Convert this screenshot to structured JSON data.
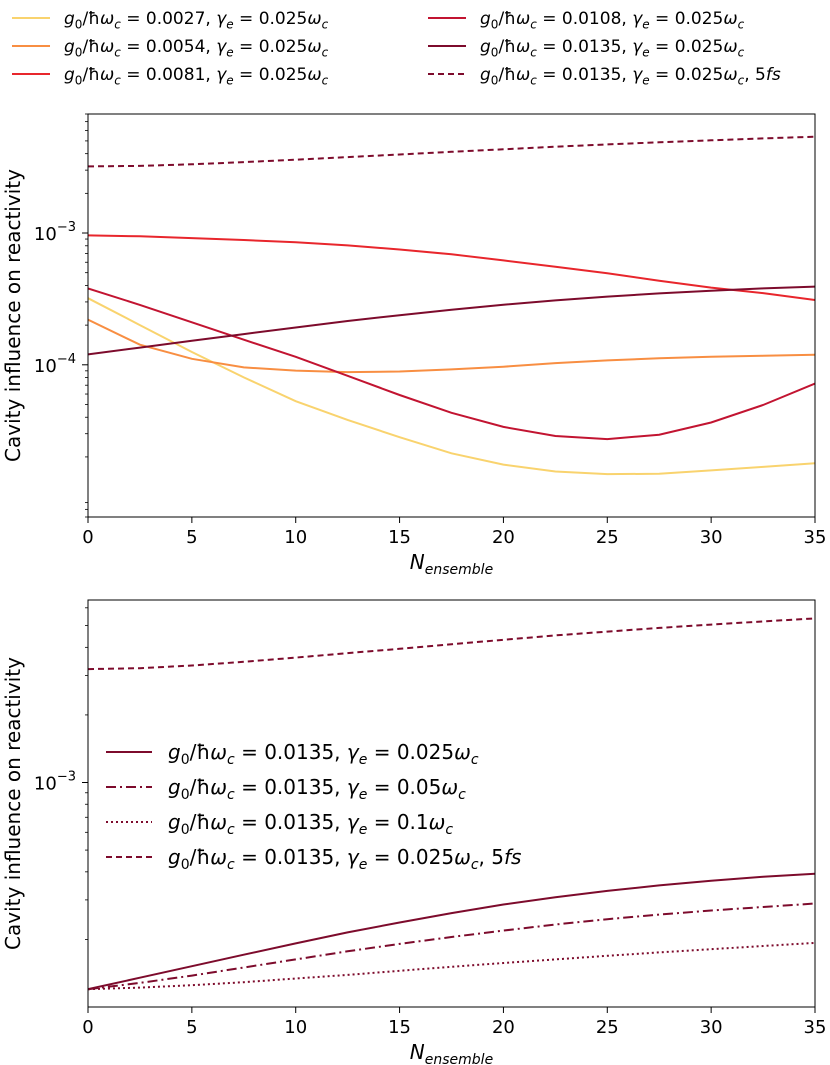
{
  "chart_data": [
    {
      "type": "line",
      "yscale": "log",
      "xlabel": "N",
      "xlabel_sub": "ensemble",
      "ylabel": "Cavity influence on reactivity",
      "xlim": [
        0,
        35
      ],
      "ylim": [
        7e-06,
        0.008
      ],
      "xticks": [
        0,
        5,
        10,
        15,
        20,
        25,
        30,
        35
      ],
      "yticks": [
        {
          "value": 0.001,
          "base": "10",
          "exp": "−3"
        },
        {
          "value": 0.0001,
          "base": "10",
          "exp": "−4"
        }
      ],
      "legend_position": "above plot, two columns",
      "x": [
        0,
        2.5,
        5,
        7.5,
        10,
        12.5,
        15,
        17.5,
        20,
        22.5,
        25,
        27.5,
        30,
        32.5,
        35
      ],
      "series": [
        {
          "name": "g0/ħωc = 0.0027, γe = 0.025ωc",
          "g0": "0.0027",
          "gamma": "0.025",
          "tail": "",
          "color": "#f9d36e",
          "dash": "",
          "values": [
            0.00032,
            0.0002,
            0.000125,
            8.02e-05,
            5.29e-05,
            3.82e-05,
            2.82e-05,
            2.13e-05,
            1.75e-05,
            1.55e-05,
            1.48e-05,
            1.49e-05,
            1.58e-05,
            1.68e-05,
            1.79e-05
          ]
        },
        {
          "name": "g0/ħωc = 0.0054, γe = 0.025ωc",
          "g0": "0.0054",
          "gamma": "0.025",
          "tail": "",
          "color": "#f88e42",
          "dash": "",
          "values": [
            0.00022,
            0.000142,
            0.000111,
            9.55e-05,
            9.03e-05,
            8.8e-05,
            8.9e-05,
            9.23e-05,
            9.68e-05,
            0.000103,
            0.000108,
            0.000112,
            0.000115,
            0.000117,
            0.000119
          ]
        },
        {
          "name": "g0/ħωc = 0.0081, γe = 0.025ωc",
          "g0": "0.0081",
          "gamma": "0.025",
          "tail": "",
          "color": "#e8262c",
          "dash": "",
          "values": [
            0.00096,
            0.000945,
            0.000915,
            0.000885,
            0.00085,
            0.000805,
            0.00075,
            0.00069,
            0.00062,
            0.000555,
            0.000495,
            0.000435,
            0.000385,
            0.00035,
            0.00031
          ]
        },
        {
          "name": "g0/ħωc = 0.0108, γe = 0.025ωc",
          "g0": "0.0108",
          "gamma": "0.025",
          "tail": "",
          "color": "#c21431",
          "dash": "",
          "values": [
            0.00038,
            0.000285,
            0.00021,
            0.000155,
            0.000115,
            8.25e-05,
            5.9e-05,
            4.32e-05,
            3.38e-05,
            2.88e-05,
            2.73e-05,
            2.95e-05,
            3.65e-05,
            4.95e-05,
            7.2e-05
          ]
        },
        {
          "name": "g0/ħωc = 0.0135, γe = 0.025ωc",
          "g0": "0.0135",
          "gamma": "0.025",
          "tail": "",
          "color": "#7d0b2c",
          "dash": "",
          "values": [
            0.00012,
            0.000135,
            0.000152,
            0.000171,
            0.000192,
            0.000215,
            0.000238,
            0.000262,
            0.000286,
            0.000308,
            0.000329,
            0.000348,
            0.000365,
            0.00038,
            0.000392
          ]
        },
        {
          "name": "g0/ħωc = 0.0135, γe = 0.025ωc, 5fs",
          "g0": "0.0135",
          "gamma": "0.025",
          "tail": ", 5fs",
          "color": "#7d0b2c",
          "dash": "6,4",
          "values": [
            0.0032,
            0.00323,
            0.00332,
            0.00345,
            0.0036,
            0.00377,
            0.00394,
            0.00413,
            0.00432,
            0.00452,
            0.0047,
            0.00488,
            0.00505,
            0.00522,
            0.00538
          ]
        }
      ]
    },
    {
      "type": "line",
      "yscale": "log",
      "xlabel": "N",
      "xlabel_sub": "ensemble",
      "ylabel": "Cavity influence on reactivity",
      "xlim": [
        0,
        35
      ],
      "ylim": [
        0.0001,
        0.0065
      ],
      "xticks": [
        0,
        5,
        10,
        15,
        20,
        25,
        30,
        35
      ],
      "yticks": [
        {
          "value": 0.001,
          "base": "10",
          "exp": "−3"
        }
      ],
      "legend_position": "center-left",
      "x": [
        0,
        2.5,
        5,
        7.5,
        10,
        12.5,
        15,
        17.5,
        20,
        22.5,
        25,
        27.5,
        30,
        32.5,
        35
      ],
      "series": [
        {
          "name": "g0/ħωc = 0.0135, γe = 0.025ωc",
          "g0": "0.0135",
          "gamma": "0.025",
          "tail": "",
          "color": "#7d0b2c",
          "dash": "",
          "values": [
            0.00012,
            0.000135,
            0.000152,
            0.000171,
            0.000192,
            0.000215,
            0.000238,
            0.000262,
            0.000286,
            0.000308,
            0.000329,
            0.000348,
            0.000365,
            0.00038,
            0.000392
          ]
        },
        {
          "name": "g0/ħωc = 0.0135, γe = 0.05ωc",
          "g0": "0.0135",
          "gamma": "0.05",
          "tail": "",
          "color": "#7d0b2c",
          "dash": "10,4,2,4",
          "values": [
            0.00012,
            0.000128,
            0.000138,
            0.00015,
            0.000163,
            0.000177,
            0.000191,
            0.000205,
            0.000219,
            0.000233,
            0.000246,
            0.000258,
            0.000269,
            0.000279,
            0.000289
          ]
        },
        {
          "name": "g0/ħωc = 0.0135, γe = 0.1ωc",
          "g0": "0.0135",
          "gamma": "0.1",
          "tail": "",
          "color": "#7d0b2c",
          "dash": "2,3",
          "values": [
            0.00012,
            0.000122,
            0.000125,
            0.000129,
            0.000134,
            0.000139,
            0.000145,
            0.000151,
            0.000157,
            0.000163,
            0.000169,
            0.000175,
            0.000181,
            0.000187,
            0.000193
          ]
        },
        {
          "name": "g0/ħωc = 0.0135, γe = 0.025ωc, 5fs",
          "g0": "0.0135",
          "gamma": "0.025",
          "tail": ", 5fs",
          "color": "#7d0b2c",
          "dash": "6,4",
          "values": [
            0.0032,
            0.00323,
            0.00332,
            0.00345,
            0.0036,
            0.00377,
            0.00394,
            0.00413,
            0.00432,
            0.00452,
            0.0047,
            0.00488,
            0.00505,
            0.00522,
            0.00538
          ]
        }
      ]
    }
  ]
}
